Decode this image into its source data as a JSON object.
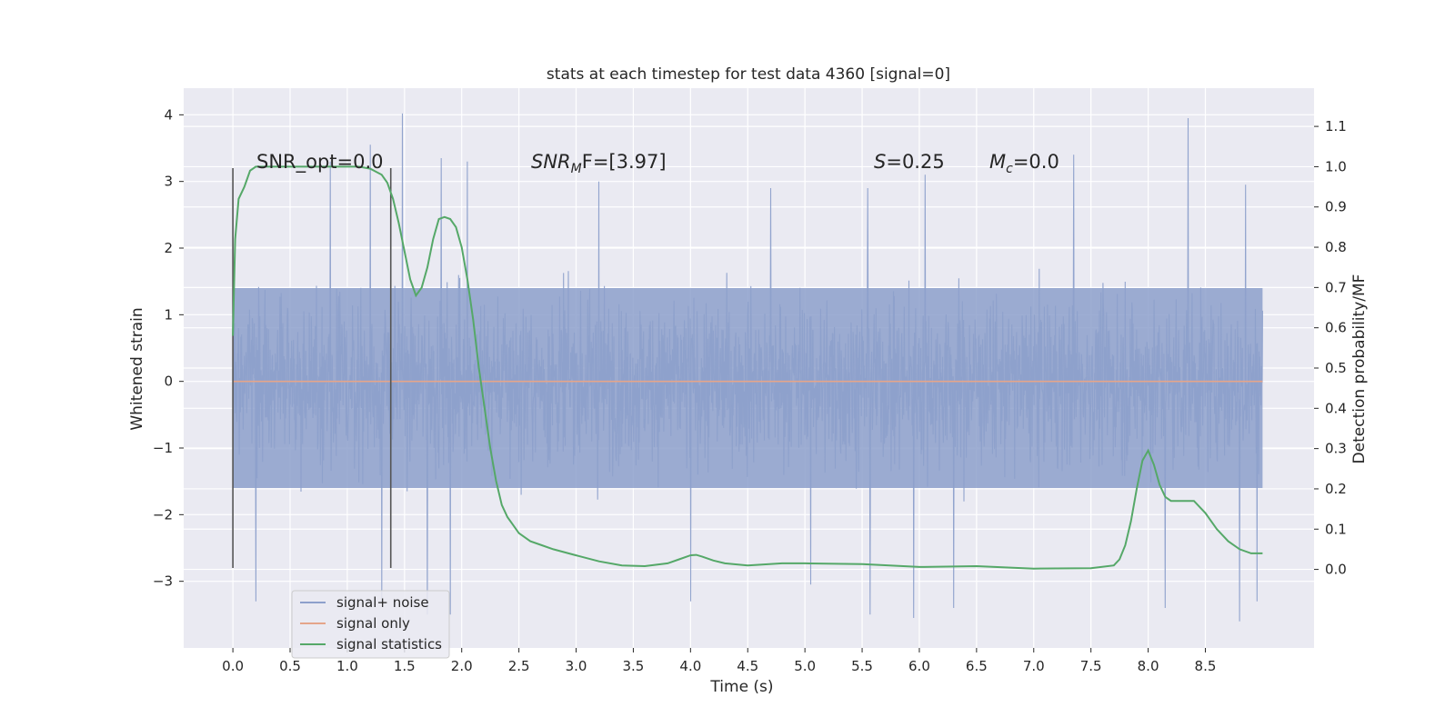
{
  "chart_data": {
    "type": "line",
    "title": "stats at each timestep for test data 4360 [signal=0]",
    "xlabel": "Time (s)",
    "ylabel": "Whitened strain",
    "y2label": "Detection probability/MF",
    "xlim": [
      -0.43,
      9.45
    ],
    "ylim": [
      -4.0,
      4.4
    ],
    "y2lim": [
      -0.195,
      1.195
    ],
    "xticks": [
      0.0,
      0.5,
      1.0,
      1.5,
      2.0,
      2.5,
      3.0,
      3.5,
      4.0,
      4.5,
      5.0,
      5.5,
      6.0,
      6.5,
      7.0,
      7.5,
      8.0,
      8.5
    ],
    "xtick_labels": [
      "0.0",
      "0.5",
      "1.0",
      "1.5",
      "2.0",
      "2.5",
      "3.0",
      "3.5",
      "4.0",
      "4.5",
      "5.0",
      "5.5",
      "6.0",
      "6.5",
      "7.0",
      "7.5",
      "8.0",
      "8.5"
    ],
    "yticks": [
      4,
      3,
      2,
      1,
      0,
      -1,
      -2,
      -3
    ],
    "ytick_labels": [
      "4",
      "3",
      "2",
      "1",
      "0",
      "−1",
      "−2",
      "−3"
    ],
    "y2ticks": [
      1.1,
      1.0,
      0.9,
      0.8,
      0.7,
      0.6,
      0.5,
      0.4,
      0.3,
      0.2,
      0.1,
      0.0
    ],
    "y2tick_labels": [
      "1.1",
      "1.0",
      "0.9",
      "0.8",
      "0.7",
      "0.6",
      "0.5",
      "0.4",
      "0.3",
      "0.2",
      "0.1",
      "0.0"
    ],
    "grid": true,
    "legend_position": "lower-left",
    "annotations": {
      "snr_opt": "SNR_opt=0.0",
      "snr_mf_main": "SNR",
      "snr_mf_sub": "M",
      "snr_mf_rest": "F=[3.97]",
      "s_main": "S",
      "s_rest": "=0.25",
      "mc_main": "M",
      "mc_sub": "c",
      "mc_rest": "=0.0"
    },
    "vertical_markers": [
      {
        "x": 0.0,
        "y_from": -2.8,
        "y_to": 3.2
      },
      {
        "x": 1.38,
        "y_from": -2.8,
        "y_to": 3.2
      }
    ],
    "series": [
      {
        "name": "signal+ noise",
        "color": "#8da0cb",
        "x_range": [
          0.0,
          9.0
        ],
        "envelope": {
          "typical_high": 1.4,
          "typical_low": -1.6
        },
        "peaks": [
          {
            "x": 1.48,
            "y": 4.02
          },
          {
            "x": 8.35,
            "y": 3.95
          },
          {
            "x": 1.82,
            "y": 3.35
          },
          {
            "x": 1.2,
            "y": 3.55
          },
          {
            "x": 2.05,
            "y": 3.3
          },
          {
            "x": 7.35,
            "y": 3.4
          },
          {
            "x": 0.85,
            "y": 3.3
          },
          {
            "x": 6.05,
            "y": 3.1
          },
          {
            "x": 3.2,
            "y": 3.0
          },
          {
            "x": 5.55,
            "y": 2.9
          },
          {
            "x": 8.85,
            "y": 2.95
          },
          {
            "x": 4.7,
            "y": 2.9
          }
        ],
        "troughs": [
          {
            "x": 0.2,
            "y": -3.3
          },
          {
            "x": 1.3,
            "y": -3.3
          },
          {
            "x": 1.7,
            "y": -3.5
          },
          {
            "x": 1.9,
            "y": -3.5
          },
          {
            "x": 4.0,
            "y": -3.3
          },
          {
            "x": 5.57,
            "y": -3.5
          },
          {
            "x": 5.95,
            "y": -3.55
          },
          {
            "x": 6.3,
            "y": -3.4
          },
          {
            "x": 8.15,
            "y": -3.4
          },
          {
            "x": 8.8,
            "y": -3.6
          },
          {
            "x": 8.95,
            "y": -3.3
          },
          {
            "x": 5.05,
            "y": -3.05
          }
        ]
      },
      {
        "name": "signal only",
        "color": "#e5a58a",
        "x": [
          0.0,
          9.0
        ],
        "y": [
          0.0,
          0.0
        ]
      },
      {
        "name": "signal statistics",
        "color": "#55a868",
        "axis": "right",
        "x": [
          0.0,
          0.02,
          0.05,
          0.1,
          0.15,
          0.2,
          0.3,
          0.5,
          0.8,
          1.0,
          1.1,
          1.2,
          1.3,
          1.35,
          1.4,
          1.45,
          1.5,
          1.55,
          1.6,
          1.65,
          1.7,
          1.75,
          1.8,
          1.85,
          1.9,
          1.95,
          2.0,
          2.05,
          2.1,
          2.15,
          2.2,
          2.25,
          2.3,
          2.35,
          2.4,
          2.45,
          2.5,
          2.6,
          2.7,
          2.8,
          3.0,
          3.2,
          3.4,
          3.6,
          3.8,
          3.9,
          4.0,
          4.05,
          4.1,
          4.2,
          4.3,
          4.5,
          4.8,
          5.0,
          5.5,
          6.0,
          6.5,
          7.0,
          7.5,
          7.7,
          7.75,
          7.8,
          7.85,
          7.9,
          7.95,
          8.0,
          8.05,
          8.1,
          8.15,
          8.2,
          8.3,
          8.4,
          8.5,
          8.6,
          8.7,
          8.8,
          8.9,
          9.0
        ],
        "y": [
          0.58,
          0.82,
          0.92,
          0.95,
          0.99,
          1.0,
          1.0,
          1.0,
          1.0,
          1.0,
          1.0,
          0.995,
          0.98,
          0.96,
          0.92,
          0.86,
          0.79,
          0.72,
          0.68,
          0.7,
          0.75,
          0.82,
          0.87,
          0.875,
          0.87,
          0.85,
          0.8,
          0.72,
          0.62,
          0.5,
          0.4,
          0.3,
          0.22,
          0.16,
          0.13,
          0.11,
          0.09,
          0.07,
          0.06,
          0.05,
          0.035,
          0.02,
          0.01,
          0.008,
          0.015,
          0.025,
          0.035,
          0.036,
          0.032,
          0.022,
          0.015,
          0.01,
          0.015,
          0.015,
          0.013,
          0.006,
          0.008,
          0.002,
          0.003,
          0.01,
          0.025,
          0.06,
          0.12,
          0.2,
          0.27,
          0.295,
          0.26,
          0.21,
          0.18,
          0.17,
          0.17,
          0.17,
          0.14,
          0.1,
          0.07,
          0.05,
          0.04,
          0.04
        ]
      }
    ]
  }
}
